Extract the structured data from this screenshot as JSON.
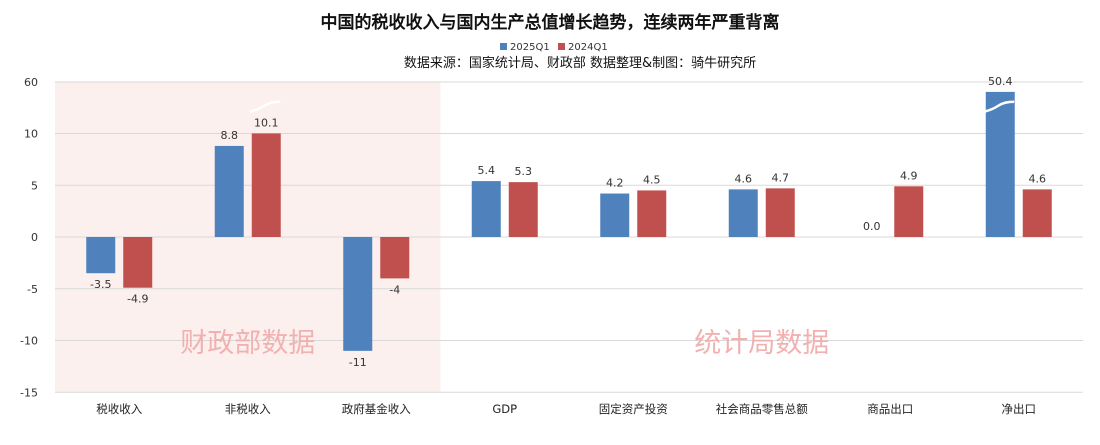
{
  "chart_data": {
    "type": "bar",
    "title": "中国的税收收入与国内生产总值增长趋势，连续两年严重背离",
    "subtitle": "数据来源：国家统计局、财政部 数据整理&制图：骑牛研究所",
    "categories": [
      "税收收入",
      "非税收入",
      "政府基金收入",
      "GDP",
      "固定资产投资",
      "社会商品零售总额",
      "商品出口",
      "净出口"
    ],
    "series": [
      {
        "name": "2025Q1",
        "color": "#4f81bd",
        "values": [
          -3.5,
          8.8,
          -11,
          5.4,
          4.2,
          4.6,
          0.0,
          50.4
        ],
        "labels": [
          "-3.5",
          "8.8",
          "-11",
          "5.4",
          "4.2",
          "4.6",
          "0.0",
          "50.4"
        ]
      },
      {
        "name": "2024Q1",
        "color": "#c0504d",
        "values": [
          -4.9,
          10.1,
          -4,
          5.3,
          4.5,
          4.7,
          4.9,
          4.6
        ],
        "labels": [
          "-4.9",
          "10.1",
          "-4",
          "5.3",
          "4.5",
          "4.7",
          "4.9",
          "4.6"
        ]
      }
    ],
    "y_ticks": [
      -15,
      -10,
      -5,
      0,
      5,
      10,
      60
    ],
    "y_tick_labels": [
      "-15",
      "-10",
      "-5",
      "0",
      "5",
      "10",
      "60"
    ],
    "axis_break": {
      "between": [
        10,
        60
      ]
    },
    "legend_position": "top-center",
    "grid": true,
    "regions": [
      {
        "label": "财政部数据",
        "categories": [
          "税收收入",
          "非税收入",
          "政府基金收入"
        ],
        "shaded": true,
        "shade_color": "#fcf0ef"
      },
      {
        "label": "统计局数据",
        "categories": [
          "GDP",
          "固定资产投资",
          "社会商品零售总额",
          "商品出口",
          "净出口"
        ],
        "shaded": false
      }
    ]
  }
}
